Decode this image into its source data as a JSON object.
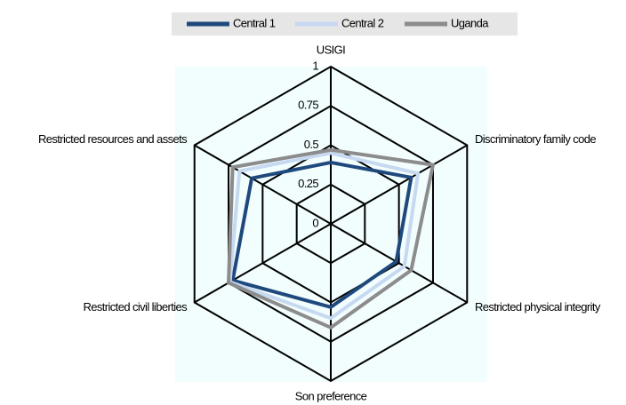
{
  "chart_data": {
    "type": "radar",
    "categories": [
      "USIGI",
      "Discriminatory family code",
      "Restricted physical integrity",
      "Son preference",
      "Restricted civil liberties",
      "Restricted resources and assets"
    ],
    "series": [
      {
        "name": "Central 1",
        "color": "#1f497d",
        "values": [
          0.39,
          0.59,
          0.48,
          0.53,
          0.72,
          0.58
        ]
      },
      {
        "name": "Central 2",
        "color": "#c6d9f1",
        "values": [
          0.45,
          0.64,
          0.54,
          0.6,
          0.74,
          0.67
        ]
      },
      {
        "name": "Uganda",
        "color": "#8c8c8c",
        "values": [
          0.47,
          0.75,
          0.59,
          0.66,
          0.75,
          0.72
        ]
      }
    ],
    "rlim": [
      0,
      1
    ],
    "rticks": [
      0,
      0.25,
      0.5,
      0.75,
      1
    ],
    "grid": true,
    "legend": "top"
  }
}
